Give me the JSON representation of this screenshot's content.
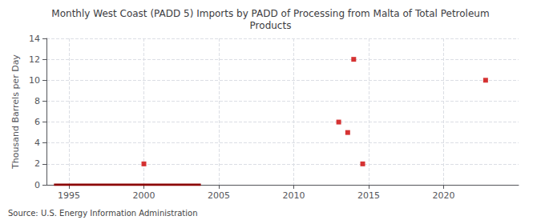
{
  "chart_data": {
    "type": "scatter",
    "title": "Monthly West Coast (PADD 5) Imports by PADD of Processing from Malta of Total Petroleum\nProducts",
    "ylabel": "Thousand Barrels per Day",
    "annotations": [
      "Source: U.S. Energy Information Administration"
    ],
    "xlim": [
      1993.5,
      2025
    ],
    "xticks": [
      1995,
      2000,
      2005,
      2010,
      2015,
      2020
    ],
    "ylim": [
      0,
      14
    ],
    "yticks": [
      0,
      2,
      4,
      6,
      8,
      10,
      12,
      14
    ],
    "grid": true,
    "series": [
      {
        "type": "line",
        "color": "#8b0000",
        "x": [
          1994.0,
          2003.8
        ],
        "values": [
          0,
          0
        ]
      },
      {
        "type": "scatter",
        "color": "#cc0000",
        "marker": "square",
        "x": [
          2000.0,
          2013.0,
          2013.6,
          2014.0,
          2014.6,
          2022.8
        ],
        "values": [
          2,
          6,
          5,
          12,
          2,
          10
        ]
      }
    ]
  }
}
